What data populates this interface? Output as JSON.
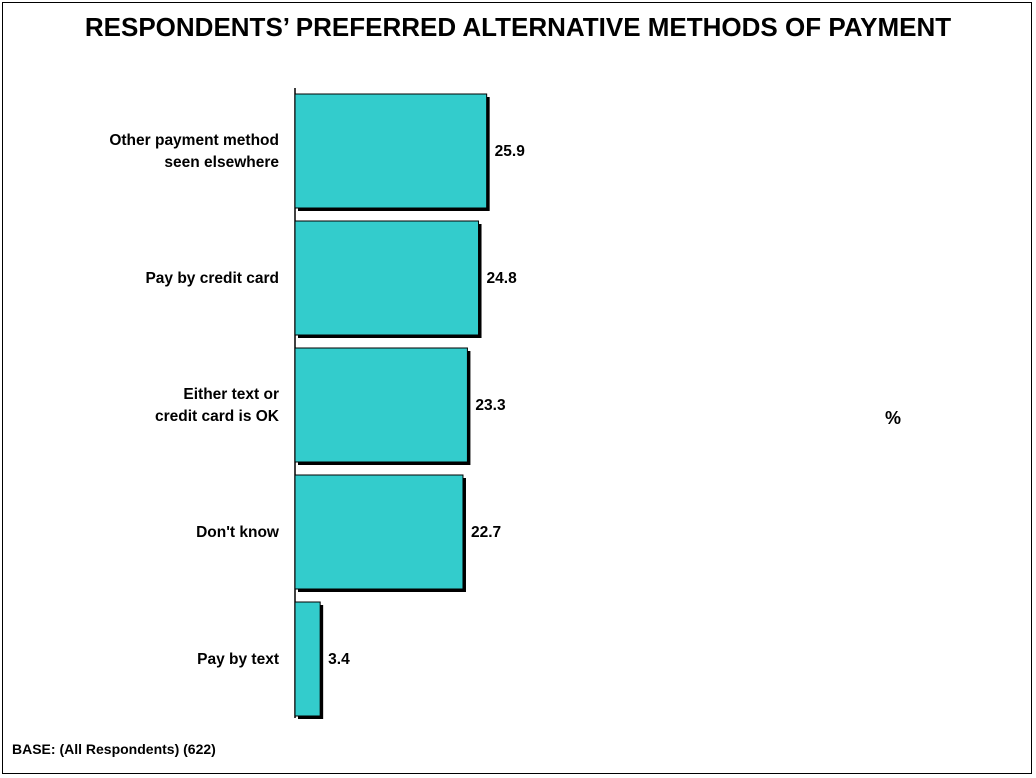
{
  "chart_data": {
    "type": "bar",
    "orientation": "horizontal",
    "title": "RESPONDENTS’ PREFERRED ALTERNATIVE METHODS OF PAYMENT",
    "categories": [
      "Other payment method seen elsewhere",
      "Pay by credit card",
      "Either text or credit card is OK",
      "Don't know",
      "Pay by text"
    ],
    "values": [
      25.9,
      24.8,
      23.3,
      22.7,
      3.4
    ],
    "value_labels": [
      "25.9",
      "24.8",
      "23.3",
      "22.7",
      "3.4"
    ],
    "unit_label": "%",
    "xlim": [
      0,
      100
    ],
    "grid": false,
    "bar_color": "#33CCCC"
  },
  "footer": {
    "base_note": "BASE:  (All Respondents) (622)"
  }
}
